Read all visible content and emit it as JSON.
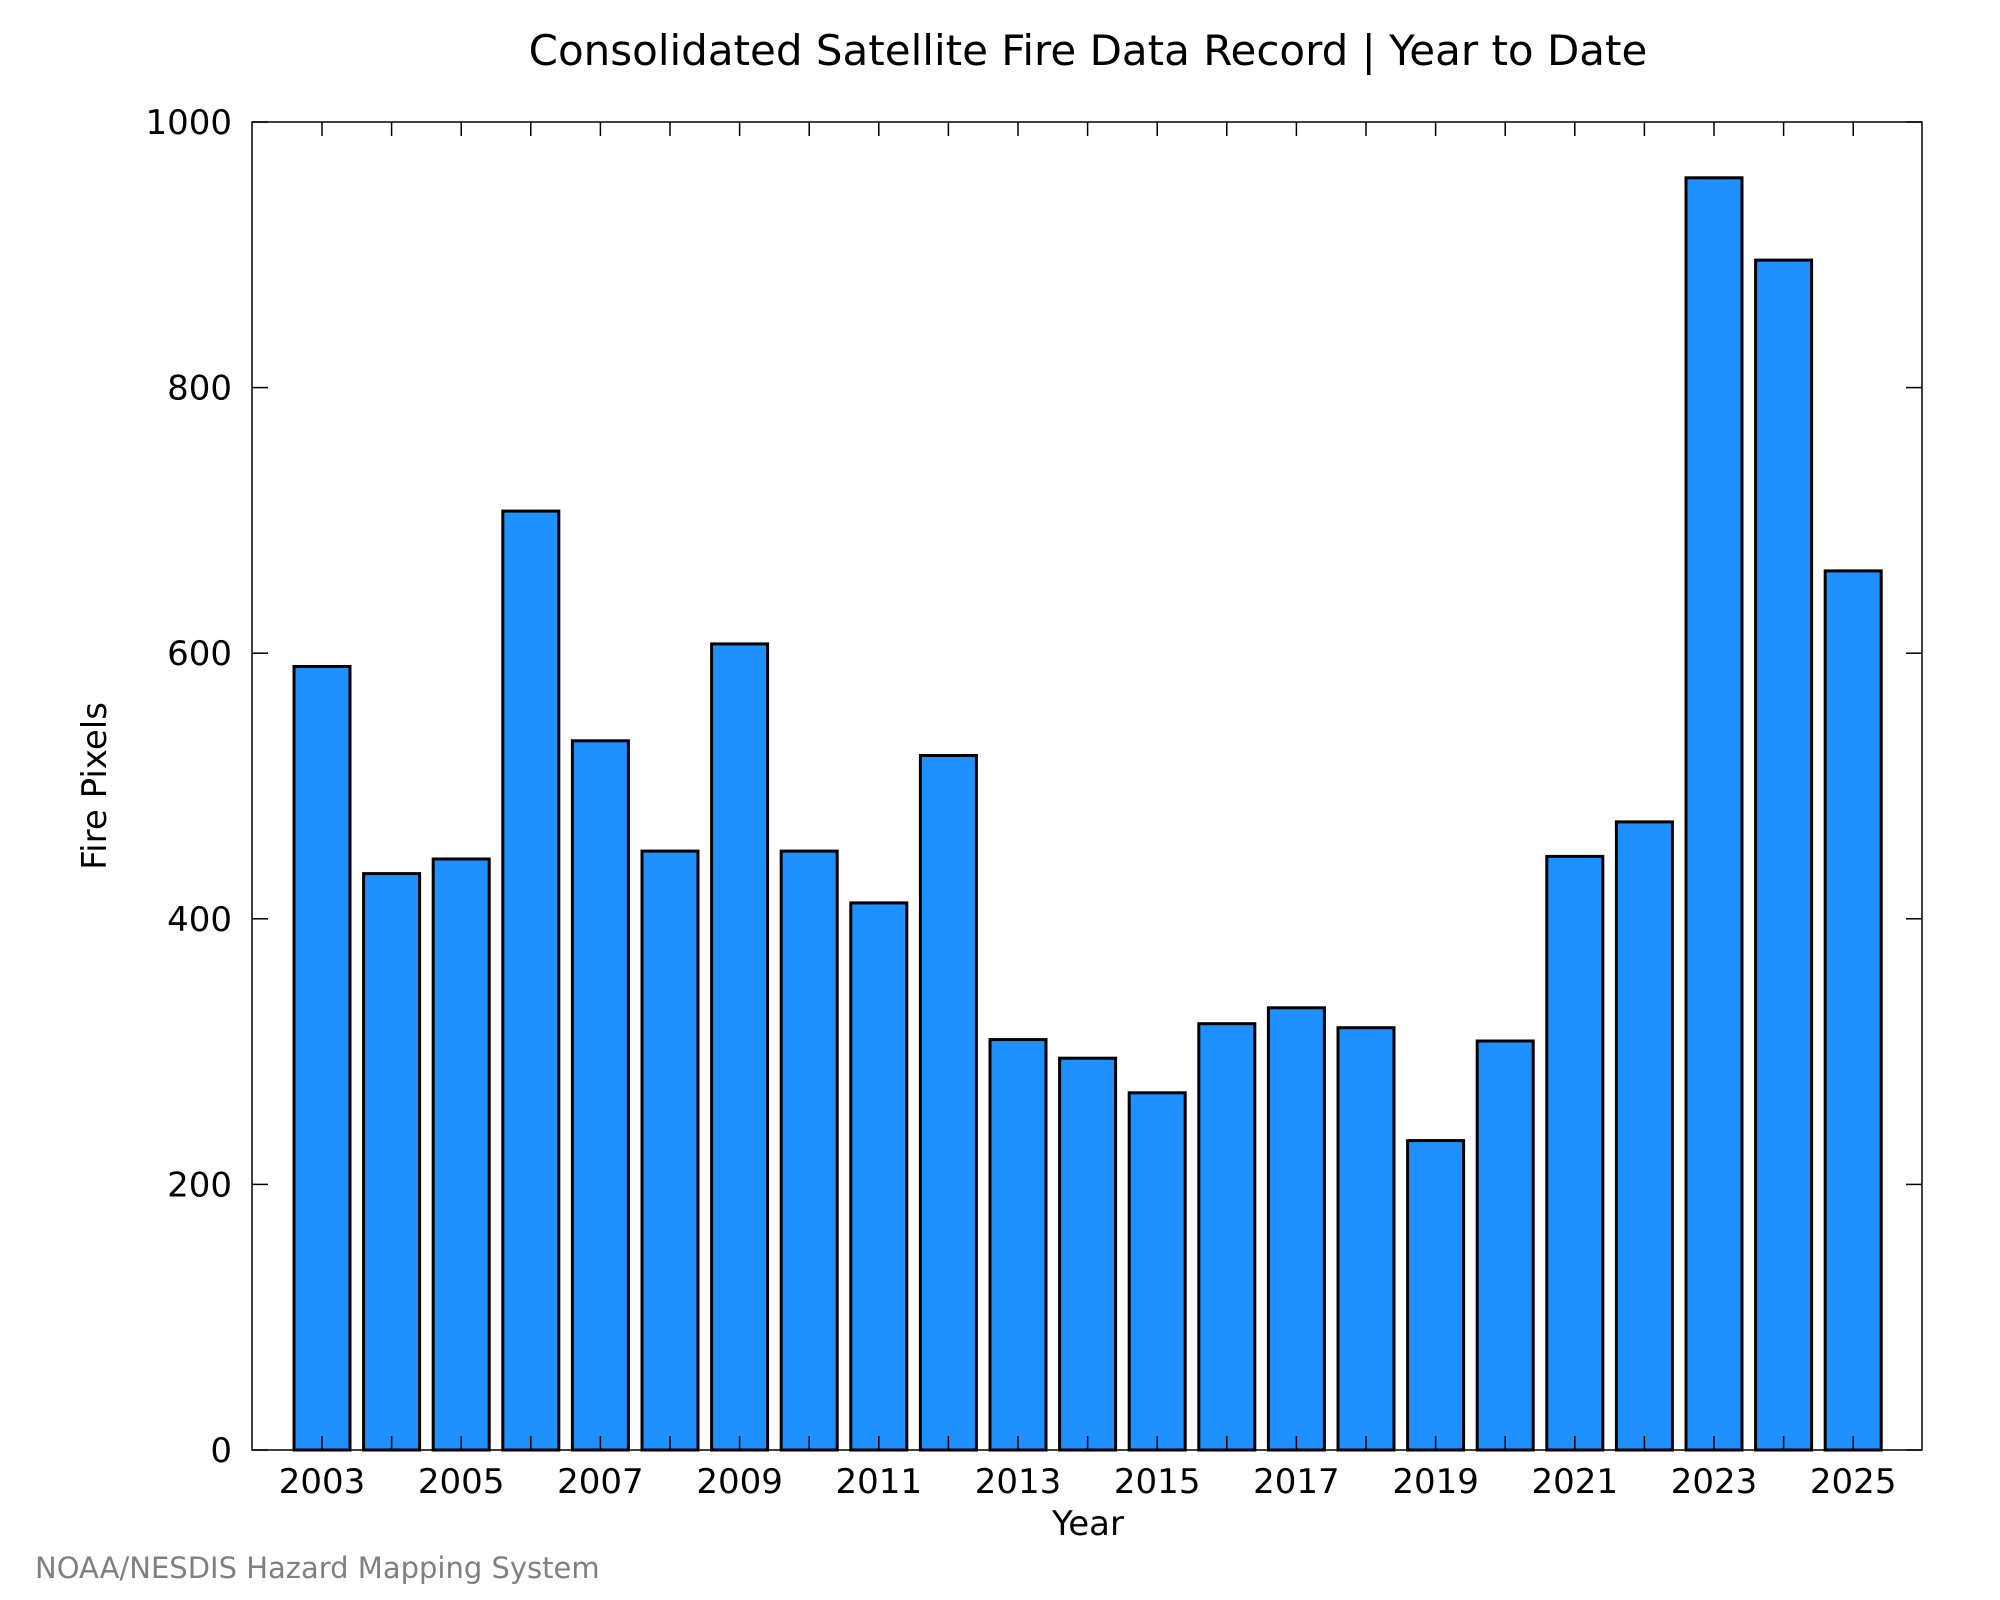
{
  "chart_data": {
    "type": "bar",
    "title": "Consolidated Satellite Fire Data Record | Year to Date",
    "xlabel": "Year",
    "ylabel": "Fire Pixels",
    "categories": [
      "2003",
      "2004",
      "2005",
      "2006",
      "2007",
      "2008",
      "2009",
      "2010",
      "2011",
      "2012",
      "2013",
      "2014",
      "2015",
      "2016",
      "2017",
      "2018",
      "2019",
      "2020",
      "2021",
      "2022",
      "2023",
      "2024",
      "2025"
    ],
    "values": [
      590,
      434,
      445,
      707,
      534,
      451,
      607,
      451,
      412,
      523,
      309,
      295,
      269,
      321,
      333,
      318,
      233,
      308,
      447,
      473,
      958,
      896,
      662
    ],
    "x_tick_labels": [
      "2003",
      "2005",
      "2007",
      "2009",
      "2011",
      "2013",
      "2015",
      "2017",
      "2019",
      "2021",
      "2023",
      "2025"
    ],
    "y_ticks": [
      0,
      200,
      400,
      600,
      800,
      1000
    ],
    "ylim": [
      0,
      1000
    ],
    "grid": false,
    "bar_color": "#1e90ff"
  },
  "footer": {
    "credit": "NOAA/NESDIS Hazard Mapping System"
  }
}
